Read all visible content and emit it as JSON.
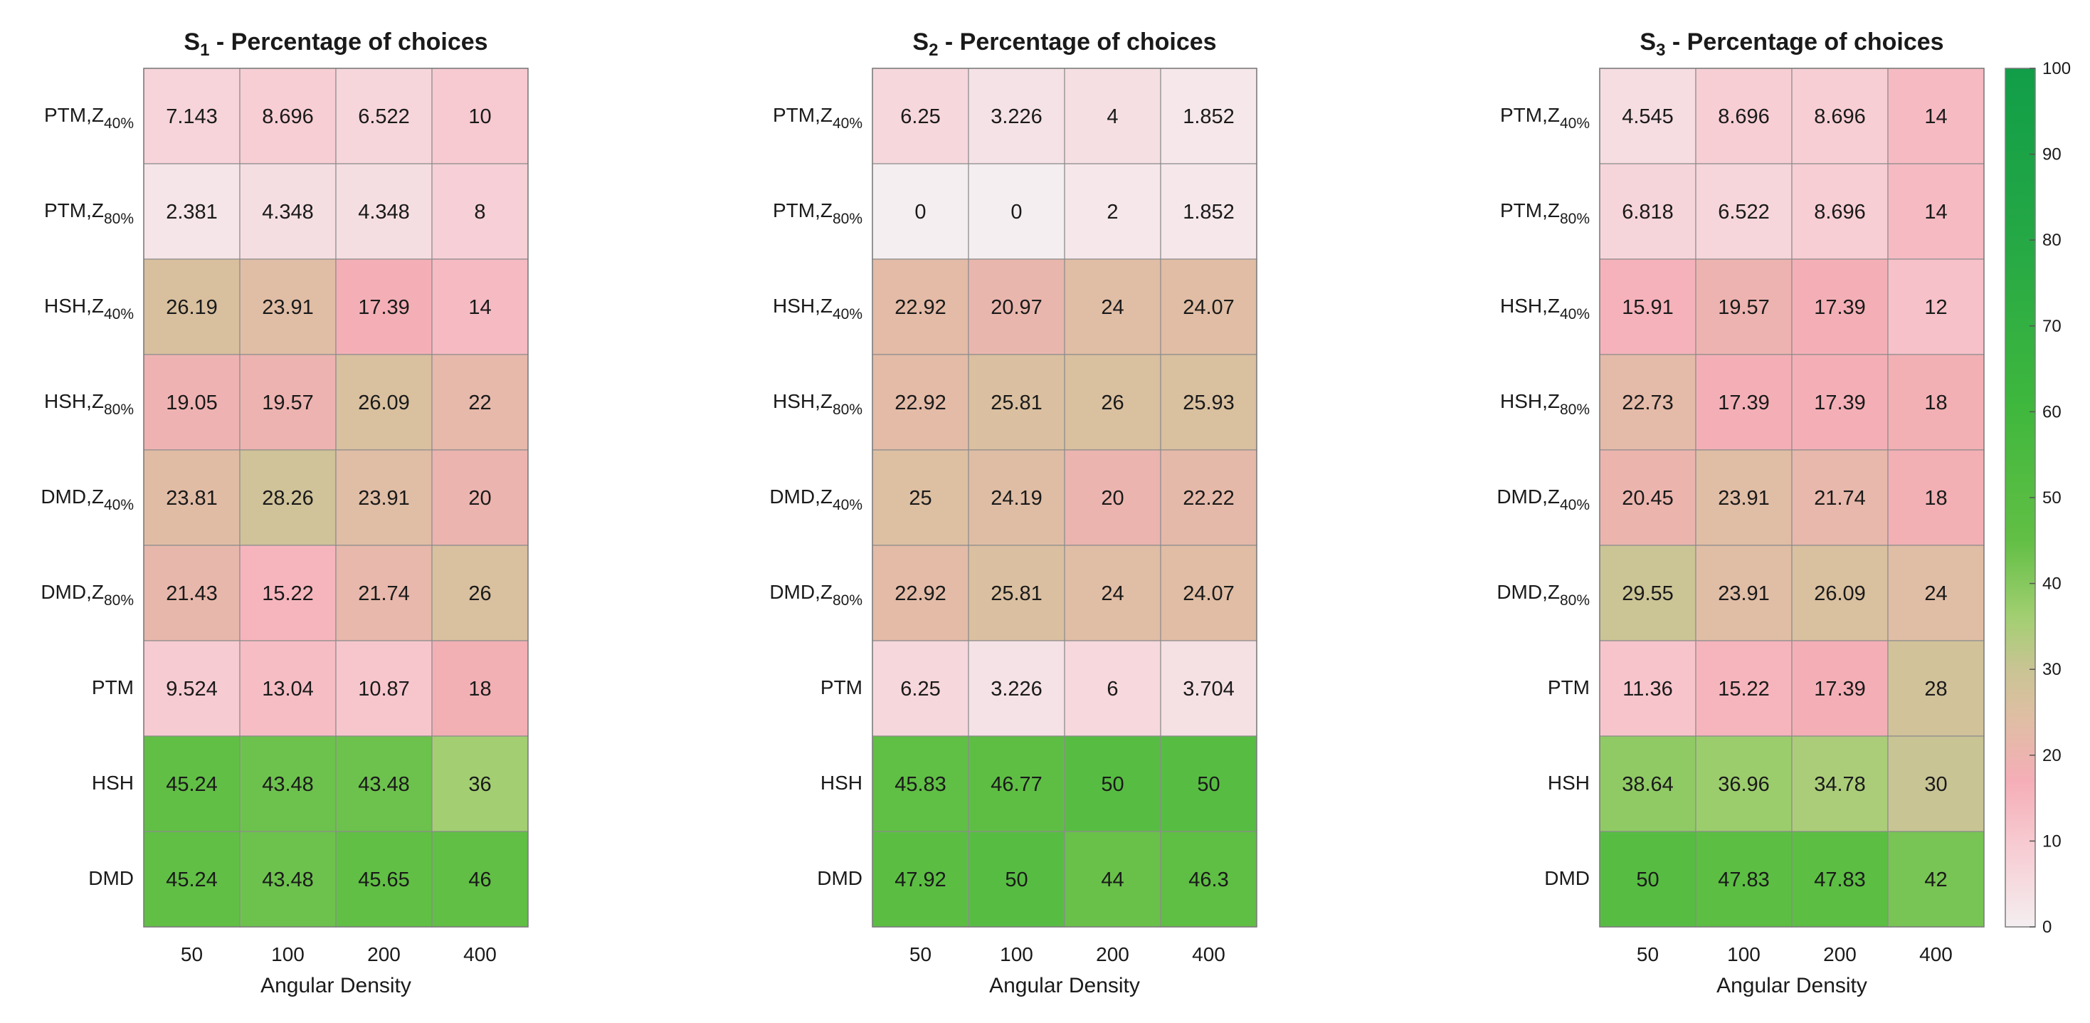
{
  "chart_data": [
    {
      "type": "heatmap",
      "title_prefix": "S",
      "title_subscript": "1",
      "title_suffix": " - Percentage of choices",
      "xlabel": "Angular Density",
      "x": [
        "50",
        "100",
        "200",
        "400"
      ],
      "rows": [
        {
          "base": "PTM,Z",
          "sub": "40%"
        },
        {
          "base": "PTM,Z",
          "sub": "80%"
        },
        {
          "base": "HSH,Z",
          "sub": "40%"
        },
        {
          "base": "HSH,Z",
          "sub": "80%"
        },
        {
          "base": "DMD,Z",
          "sub": "40%"
        },
        {
          "base": "DMD,Z",
          "sub": "80%"
        },
        {
          "base": "PTM",
          "sub": ""
        },
        {
          "base": "HSH",
          "sub": ""
        },
        {
          "base": "DMD",
          "sub": ""
        }
      ],
      "values": [
        [
          "7.143",
          "8.696",
          "6.522",
          "10"
        ],
        [
          "2.381",
          "4.348",
          "4.348",
          "8"
        ],
        [
          "26.19",
          "23.91",
          "17.39",
          "14"
        ],
        [
          "19.05",
          "19.57",
          "26.09",
          "22"
        ],
        [
          "23.81",
          "28.26",
          "23.91",
          "20"
        ],
        [
          "21.43",
          "15.22",
          "21.74",
          "26"
        ],
        [
          "9.524",
          "13.04",
          "10.87",
          "18"
        ],
        [
          "45.24",
          "43.48",
          "43.48",
          "36"
        ],
        [
          "45.24",
          "43.48",
          "45.65",
          "46"
        ]
      ]
    },
    {
      "type": "heatmap",
      "title_prefix": "S",
      "title_subscript": "2",
      "title_suffix": " - Percentage of choices",
      "xlabel": "Angular Density",
      "x": [
        "50",
        "100",
        "200",
        "400"
      ],
      "rows": [
        {
          "base": "PTM,Z",
          "sub": "40%"
        },
        {
          "base": "PTM,Z",
          "sub": "80%"
        },
        {
          "base": "HSH,Z",
          "sub": "40%"
        },
        {
          "base": "HSH,Z",
          "sub": "80%"
        },
        {
          "base": "DMD,Z",
          "sub": "40%"
        },
        {
          "base": "DMD,Z",
          "sub": "80%"
        },
        {
          "base": "PTM",
          "sub": ""
        },
        {
          "base": "HSH",
          "sub": ""
        },
        {
          "base": "DMD",
          "sub": ""
        }
      ],
      "values": [
        [
          "6.25",
          "3.226",
          "4",
          "1.852"
        ],
        [
          "0",
          "0",
          "2",
          "1.852"
        ],
        [
          "22.92",
          "20.97",
          "24",
          "24.07"
        ],
        [
          "22.92",
          "25.81",
          "26",
          "25.93"
        ],
        [
          "25",
          "24.19",
          "20",
          "22.22"
        ],
        [
          "22.92",
          "25.81",
          "24",
          "24.07"
        ],
        [
          "6.25",
          "3.226",
          "6",
          "3.704"
        ],
        [
          "45.83",
          "46.77",
          "50",
          "50"
        ],
        [
          "47.92",
          "50",
          "44",
          "46.3"
        ]
      ]
    },
    {
      "type": "heatmap",
      "title_prefix": "S",
      "title_subscript": "3",
      "title_suffix": " - Percentage of choices",
      "xlabel": "Angular Density",
      "x": [
        "50",
        "100",
        "200",
        "400"
      ],
      "rows": [
        {
          "base": "PTM,Z",
          "sub": "40%"
        },
        {
          "base": "PTM,Z",
          "sub": "80%"
        },
        {
          "base": "HSH,Z",
          "sub": "40%"
        },
        {
          "base": "HSH,Z",
          "sub": "80%"
        },
        {
          "base": "DMD,Z",
          "sub": "40%"
        },
        {
          "base": "DMD,Z",
          "sub": "80%"
        },
        {
          "base": "PTM",
          "sub": ""
        },
        {
          "base": "HSH",
          "sub": ""
        },
        {
          "base": "DMD",
          "sub": ""
        }
      ],
      "values": [
        [
          "4.545",
          "8.696",
          "8.696",
          "14"
        ],
        [
          "6.818",
          "6.522",
          "8.696",
          "14"
        ],
        [
          "15.91",
          "19.57",
          "17.39",
          "12"
        ],
        [
          "22.73",
          "17.39",
          "17.39",
          "18"
        ],
        [
          "20.45",
          "23.91",
          "21.74",
          "18"
        ],
        [
          "29.55",
          "23.91",
          "26.09",
          "24"
        ],
        [
          "11.36",
          "15.22",
          "17.39",
          "28"
        ],
        [
          "38.64",
          "36.96",
          "34.78",
          "30"
        ],
        [
          "50",
          "47.83",
          "47.83",
          "42"
        ]
      ]
    }
  ],
  "colorbar": {
    "range": [
      0,
      100
    ],
    "ticks": [
      "0",
      "10",
      "20",
      "30",
      "40",
      "50",
      "60",
      "70",
      "80",
      "90",
      "100"
    ],
    "colormap_stops": [
      {
        "value": 0,
        "color": "#f4eef0"
      },
      {
        "value": 10,
        "color": "#f7c9d0"
      },
      {
        "value": 17,
        "color": "#f5aeb7"
      },
      {
        "value": 25,
        "color": "#ddbfa2"
      },
      {
        "value": 30,
        "color": "#c9c494"
      },
      {
        "value": 36,
        "color": "#a3cf72"
      },
      {
        "value": 45,
        "color": "#62bf45"
      },
      {
        "value": 60,
        "color": "#40b83d"
      },
      {
        "value": 80,
        "color": "#25a845"
      },
      {
        "value": 100,
        "color": "#119e48"
      }
    ]
  }
}
